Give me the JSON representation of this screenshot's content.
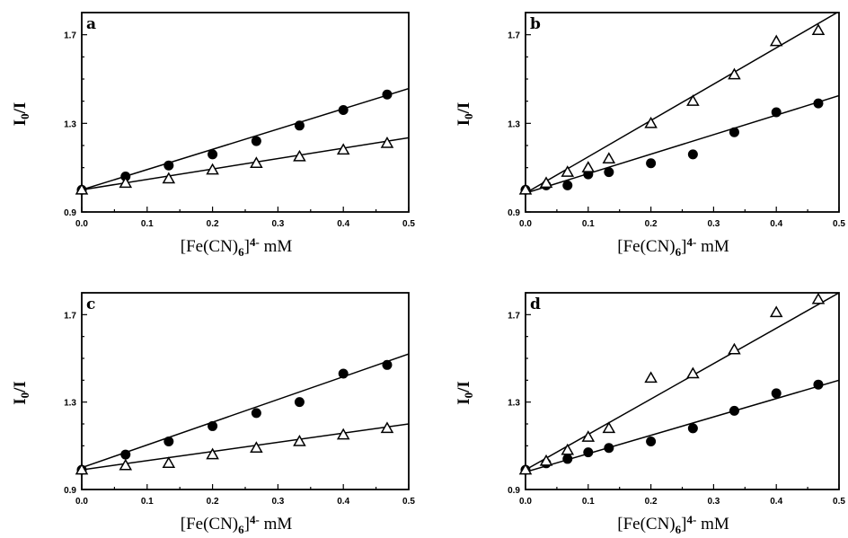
{
  "chart_data": [
    {
      "type": "scatter",
      "panel_label": "a",
      "xlabel": "[Fe(CN)6]4- mM",
      "ylabel": "I0/I",
      "xlim": [
        0,
        0.5
      ],
      "ylim": [
        0.9,
        1.8
      ],
      "xticks": [
        "0.0",
        "0.1",
        "0.2",
        "0.3",
        "0.4",
        "0.5"
      ],
      "yticks": [
        "0.9",
        "1.3",
        "1.7"
      ],
      "series": [
        {
          "marker": "filled-circle",
          "x": [
            0,
            0.067,
            0.133,
            0.2,
            0.267,
            0.333,
            0.4,
            0.467
          ],
          "y": [
            1.0,
            1.06,
            1.11,
            1.16,
            1.22,
            1.29,
            1.36,
            1.43
          ],
          "fit": [
            1.0,
            1.457
          ]
        },
        {
          "marker": "open-triangle",
          "x": [
            0,
            0.067,
            0.133,
            0.2,
            0.267,
            0.333,
            0.4,
            0.467
          ],
          "y": [
            1.0,
            1.03,
            1.05,
            1.09,
            1.12,
            1.15,
            1.18,
            1.21
          ],
          "fit": [
            1.0,
            1.235
          ]
        }
      ]
    },
    {
      "type": "scatter",
      "panel_label": "b",
      "xlabel": "[Fe(CN)6]4- mM",
      "ylabel": "I0/I",
      "xlim": [
        0,
        0.5
      ],
      "ylim": [
        0.9,
        1.8
      ],
      "xticks": [
        "0.0",
        "0.1",
        "0.2",
        "0.3",
        "0.4",
        "0.5"
      ],
      "yticks": [
        "0.9",
        "1.3",
        "1.7"
      ],
      "series": [
        {
          "marker": "filled-circle",
          "x": [
            0,
            0.033,
            0.067,
            0.1,
            0.133,
            0.2,
            0.267,
            0.333,
            0.4,
            0.467
          ],
          "y": [
            1.0,
            1.02,
            1.02,
            1.07,
            1.08,
            1.12,
            1.16,
            1.26,
            1.35,
            1.39
          ],
          "fit": [
            0.985,
            1.425
          ]
        },
        {
          "marker": "open-triangle",
          "x": [
            0,
            0.033,
            0.067,
            0.1,
            0.133,
            0.2,
            0.267,
            0.333,
            0.4,
            0.467
          ],
          "y": [
            1.0,
            1.03,
            1.08,
            1.1,
            1.14,
            1.3,
            1.4,
            1.52,
            1.67,
            1.72
          ],
          "fit": [
            0.985,
            1.805
          ]
        }
      ]
    },
    {
      "type": "scatter",
      "panel_label": "c",
      "xlabel": "[Fe(CN)6]4- mM",
      "ylabel": "I0/I",
      "xlim": [
        0,
        0.5
      ],
      "ylim": [
        0.9,
        1.8
      ],
      "xticks": [
        "0.0",
        "0.1",
        "0.2",
        "0.3",
        "0.4",
        "0.5"
      ],
      "yticks": [
        "0.9",
        "1.3",
        "1.7"
      ],
      "series": [
        {
          "marker": "filled-circle",
          "x": [
            0,
            0.067,
            0.133,
            0.2,
            0.267,
            0.333,
            0.4,
            0.467
          ],
          "y": [
            0.99,
            1.06,
            1.12,
            1.19,
            1.25,
            1.3,
            1.43,
            1.47
          ],
          "fit": [
            1.0,
            1.52
          ]
        },
        {
          "marker": "open-triangle",
          "x": [
            0,
            0.067,
            0.133,
            0.2,
            0.267,
            0.333,
            0.4,
            0.467
          ],
          "y": [
            0.99,
            1.01,
            1.02,
            1.06,
            1.09,
            1.12,
            1.15,
            1.18
          ],
          "fit": [
            0.99,
            1.2
          ]
        }
      ]
    },
    {
      "type": "scatter",
      "panel_label": "d",
      "xlabel": "[Fe(CN)6]4- mM",
      "ylabel": "I0/I",
      "xlim": [
        0,
        0.5
      ],
      "ylim": [
        0.9,
        1.8
      ],
      "xticks": [
        "0.0",
        "0.1",
        "0.2",
        "0.3",
        "0.4",
        "0.5"
      ],
      "yticks": [
        "0.9",
        "1.3",
        "1.7"
      ],
      "series": [
        {
          "marker": "filled-circle",
          "x": [
            0,
            0.033,
            0.067,
            0.1,
            0.133,
            0.2,
            0.267,
            0.333,
            0.4,
            0.467
          ],
          "y": [
            0.99,
            1.02,
            1.04,
            1.07,
            1.09,
            1.12,
            1.18,
            1.26,
            1.34,
            1.38
          ],
          "fit": [
            0.98,
            1.4
          ]
        },
        {
          "marker": "open-triangle",
          "x": [
            0,
            0.033,
            0.067,
            0.1,
            0.133,
            0.2,
            0.267,
            0.333,
            0.4,
            0.467
          ],
          "y": [
            0.99,
            1.03,
            1.08,
            1.14,
            1.18,
            1.41,
            1.43,
            1.54,
            1.71,
            1.77
          ],
          "fit": [
            0.99,
            1.8
          ]
        }
      ]
    }
  ]
}
